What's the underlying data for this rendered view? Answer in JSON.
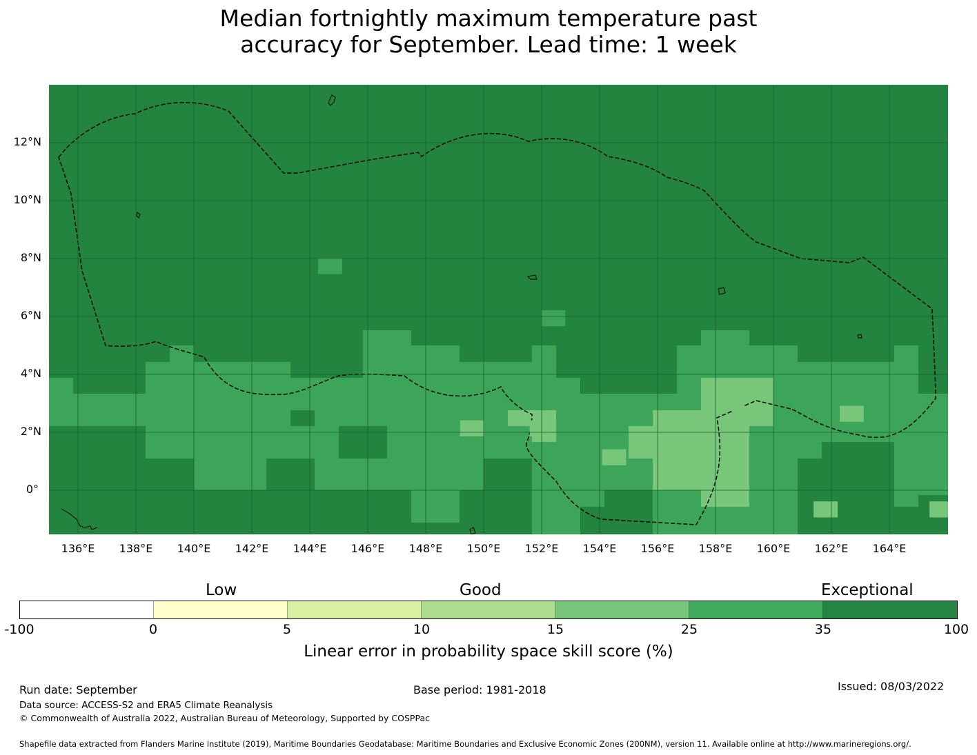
{
  "title": {
    "line1": "Median fortnightly maximum temperature past",
    "line2": "accuracy for September. Lead time: 1 week"
  },
  "map": {
    "latitude_labels": [
      "12°N",
      "10°N",
      "8°N",
      "6°N",
      "4°N",
      "2°N",
      "0°"
    ],
    "longitude_labels": [
      "136°E",
      "138°E",
      "140°E",
      "142°E",
      "144°E",
      "146°E",
      "148°E",
      "150°E",
      "152°E",
      "154°E",
      "156°E",
      "158°E",
      "160°E",
      "162°E",
      "164°E"
    ],
    "region_boundary": "dashed EEZ outline",
    "grid_resolution_deg": 0.83,
    "colors": {
      "cat_35_100": "#23843f",
      "cat_25_35": "#3da55a",
      "cat_15_25": "#77c679"
    },
    "anomaly_cells": [
      {
        "category": "25-35",
        "lat": 7.6,
        "lon": 144.7
      },
      {
        "category": "25-35",
        "lat": 5.8,
        "lon": 152.4
      },
      {
        "category": "15-25",
        "lat": 2.0,
        "lon": 149.6
      },
      {
        "category": "15-25",
        "lat": 2.0,
        "lon": 152.0
      },
      {
        "category": "15-25",
        "lat": 1.0,
        "lon": 154.5
      },
      {
        "category": "15-25",
        "lat": 1.5,
        "lon": 156.5
      },
      {
        "category": "15-25",
        "lat": 2.5,
        "lon": 159.0
      },
      {
        "category": "15-25",
        "lat": 2.5,
        "lon": 162.7
      },
      {
        "category": "15-25",
        "lat": -0.8,
        "lon": 161.8
      },
      {
        "category": "15-25",
        "lat": -0.8,
        "lon": 165.8
      }
    ]
  },
  "legend": {
    "categories": [
      "Low",
      "Good",
      "Exceptional"
    ],
    "ticks": [
      "-100",
      "0",
      "5",
      "10",
      "15",
      "25",
      "35",
      "100"
    ],
    "segment_colors": [
      "#ffffff",
      "#ffffcc",
      "#d9f0a3",
      "#addd8e",
      "#78c679",
      "#41ab5d",
      "#238443"
    ],
    "label": "Linear error in probability space skill score (%)"
  },
  "footer": {
    "run_date": "Run date: September",
    "base_period": "Base period: 1981-2018",
    "issued": "Issued: 08/03/2022",
    "data_source": "Data source: ACCESS-S2 and ERA5 Climate Reanalysis",
    "copyright": "© Commonwealth of Australia 2022, Australian Bureau of Meteorology, Supported by COSPPac",
    "shapefile_note": "Shapefile data extracted from Flanders Marine Institute (2019), Maritime Boundaries Geodatabase: Maritime Boundaries and Exclusive Economic Zones (200NM), version 11. Available online at http://www.marineregions.org/."
  }
}
